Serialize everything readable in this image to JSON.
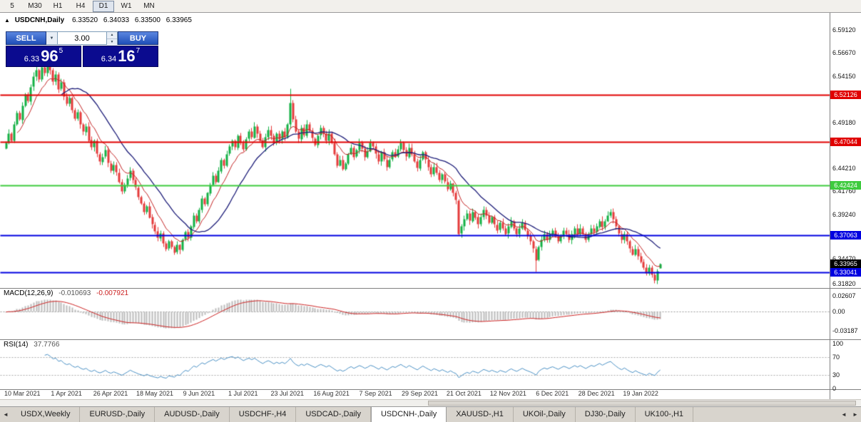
{
  "toolbar": {
    "periods": [
      {
        "label": "5",
        "active": false
      },
      {
        "label": "M30",
        "active": false
      },
      {
        "label": "H1",
        "active": false
      },
      {
        "label": "H4",
        "active": false
      },
      {
        "label": "D1",
        "active": true
      },
      {
        "label": "W1",
        "active": false
      },
      {
        "label": "MN",
        "active": false
      }
    ]
  },
  "chart": {
    "symbol_title": "USDCNH,Daily",
    "collapse_icon": "▲",
    "ohlc": {
      "open": "6.33520",
      "high": "6.34033",
      "low": "6.33500",
      "close": "6.33965"
    },
    "trade_panel": {
      "sell_label": "SELL",
      "buy_label": "BUY",
      "volume": "3.00",
      "sell_price": {
        "small": "6.33",
        "big": "96",
        "sup": "5"
      },
      "buy_price": {
        "small": "6.34",
        "big": "16",
        "sup": "7"
      }
    },
    "price_axis": {
      "ticks": [
        "6.59120",
        "6.56670",
        "6.54150",
        "6.49180",
        "6.46930",
        "6.44210",
        "6.41760",
        "6.39240",
        "6.36990",
        "6.34470",
        "6.31820"
      ],
      "levels": [
        {
          "label": "6.52126",
          "value": 6.52126,
          "color": "#e00000"
        },
        {
          "label": "6.47044",
          "value": 6.47044,
          "color": "#e00000"
        },
        {
          "label": "6.42424",
          "value": 6.42424,
          "color": "#3ecb3e"
        },
        {
          "label": "6.37063",
          "value": 6.37063,
          "color": "#0000e0"
        },
        {
          "label": "6.33041",
          "value": 6.33041,
          "color": "#0000e0"
        }
      ],
      "current": {
        "label": "6.33965",
        "value": 6.33965,
        "color": "#000000"
      }
    },
    "colors": {
      "candle_up": "#14b044",
      "candle_down": "#e43b3b",
      "ma_fast": "#c22222",
      "ma_slow": "#1c1c78",
      "macd_hist": "#bcbcbc",
      "macd_signal": "#cc2222",
      "rsi_line": "#4a90c4"
    }
  },
  "macd": {
    "label": "MACD(12,26,9)",
    "value1": "-0.010693",
    "value2": "-0.007921",
    "axis": [
      {
        "label": "0.02607",
        "value": 0.02607
      },
      {
        "label": "0.00",
        "value": 0
      },
      {
        "label": "-0.03187",
        "value": -0.03187
      }
    ]
  },
  "rsi": {
    "label": "RSI(14)",
    "value": "37.7766",
    "axis": [
      {
        "label": "100",
        "value": 100
      },
      {
        "label": "70",
        "value": 70
      },
      {
        "label": "30",
        "value": 30
      },
      {
        "label": "0",
        "value": 0
      }
    ],
    "dotted_levels": [
      70,
      30
    ]
  },
  "chart_data": {
    "type": "candlestick",
    "symbol": "USDCNH",
    "timeframe": "Daily",
    "title": "USDCNH,Daily",
    "y_axis_ticks": [
      6.5912,
      6.5667,
      6.5415,
      6.4918,
      6.4693,
      6.4421,
      6.4176,
      6.3924,
      6.3699,
      6.3447,
      6.3182
    ],
    "horizontal_levels": [
      {
        "value": 6.52126,
        "color": "#e00000"
      },
      {
        "value": 6.47044,
        "color": "#e00000"
      },
      {
        "value": 6.42424,
        "color": "#3ecb3e"
      },
      {
        "value": 6.37063,
        "color": "#0000e0"
      },
      {
        "value": 6.33041,
        "color": "#0000e0"
      }
    ],
    "last_ohlc": {
      "open": 6.3352,
      "high": 6.34033,
      "low": 6.335,
      "close": 6.33965
    },
    "x_tick_labels": [
      "10 Mar 2021",
      "1 Apr 2021",
      "26 Apr 2021",
      "18 May 2021",
      "9 Jun 2021",
      "1 Jul 2021",
      "23 Jul 2021",
      "16 Aug 2021",
      "7 Sep 2021",
      "29 Sep 2021",
      "21 Oct 2021",
      "12 Nov 2021",
      "6 Dec 2021",
      "28 Dec 2021",
      "19 Jan 2022"
    ],
    "x_tick_indices": [
      6,
      22,
      38,
      54,
      70,
      86,
      102,
      118,
      134,
      150,
      166,
      182,
      198,
      214,
      230
    ],
    "closes": [
      6.47,
      6.48,
      6.472,
      6.49,
      6.502,
      6.495,
      6.51,
      6.522,
      6.515,
      6.53,
      6.541,
      6.548,
      6.538,
      6.551,
      6.545,
      6.556,
      6.548,
      6.536,
      6.544,
      6.528,
      6.535,
      6.52,
      6.512,
      6.518,
      6.505,
      6.496,
      6.503,
      6.49,
      6.482,
      6.488,
      6.473,
      6.465,
      6.472,
      6.458,
      6.45,
      6.455,
      6.462,
      6.448,
      6.44,
      6.446,
      6.438,
      6.428,
      6.418,
      6.425,
      6.432,
      6.44,
      6.43,
      6.422,
      6.412,
      6.405,
      6.396,
      6.402,
      6.39,
      6.382,
      6.375,
      6.368,
      6.373,
      6.362,
      6.356,
      6.364,
      6.358,
      6.352,
      6.36,
      6.355,
      6.366,
      6.374,
      6.368,
      6.38,
      6.392,
      6.386,
      6.398,
      6.41,
      6.404,
      6.416,
      6.425,
      6.435,
      6.428,
      6.44,
      6.452,
      6.446,
      6.458,
      6.466,
      6.472,
      6.465,
      6.478,
      6.47,
      6.463,
      6.474,
      6.482,
      6.476,
      6.488,
      6.48,
      6.472,
      6.465,
      6.476,
      6.484,
      6.478,
      6.47,
      6.48,
      6.474,
      6.482,
      6.476,
      6.49,
      6.513,
      6.495,
      6.482,
      6.474,
      6.486,
      6.478,
      6.49,
      6.483,
      6.475,
      6.468,
      6.478,
      6.486,
      6.48,
      6.472,
      6.48,
      6.47,
      6.458,
      6.446,
      6.452,
      6.442,
      6.448,
      6.458,
      6.465,
      6.455,
      6.462,
      6.47,
      6.464,
      6.455,
      6.461,
      6.47,
      6.466,
      6.458,
      6.45,
      6.46,
      6.452,
      6.444,
      6.452,
      6.46,
      6.455,
      6.463,
      6.47,
      6.462,
      6.455,
      6.465,
      6.458,
      6.45,
      6.443,
      6.452,
      6.46,
      6.452,
      6.444,
      6.436,
      6.444,
      6.438,
      6.43,
      6.436,
      6.428,
      6.42,
      6.426,
      6.416,
      6.408,
      6.372,
      6.38,
      6.388,
      6.394,
      6.386,
      6.396,
      6.39,
      6.382,
      6.39,
      6.398,
      6.392,
      6.384,
      6.39,
      6.382,
      6.376,
      6.384,
      6.378,
      6.372,
      6.38,
      6.386,
      6.378,
      6.372,
      6.378,
      6.384,
      6.376,
      6.37,
      6.364,
      6.356,
      6.344,
      6.358,
      6.366,
      6.372,
      6.366,
      6.372,
      6.376,
      6.37,
      6.364,
      6.37,
      6.376,
      6.372,
      6.366,
      6.372,
      6.378,
      6.372,
      6.378,
      6.372,
      6.366,
      6.372,
      6.378,
      6.374,
      6.38,
      6.386,
      6.38,
      6.386,
      6.392,
      6.396,
      6.388,
      6.38,
      6.372,
      6.366,
      6.372,
      6.364,
      6.356,
      6.35,
      6.356,
      6.348,
      6.342,
      6.336,
      6.33,
      6.336,
      6.328,
      6.322,
      6.332,
      6.3397
    ],
    "indicators": [
      {
        "name": "MACD",
        "params": [
          12,
          26,
          9
        ],
        "current_values": [
          -0.010693,
          -0.007921
        ],
        "axis_range": [
          -0.03187,
          0.02607
        ]
      },
      {
        "name": "RSI",
        "params": [
          14
        ],
        "current_value": 37.7766,
        "levels": [
          70,
          30
        ],
        "axis_range": [
          0,
          100
        ]
      }
    ]
  },
  "bottom_tabs": {
    "scroll_left": "◄",
    "scroll_right_a": "◄",
    "scroll_right_b": "►",
    "active_index": 5,
    "tabs": [
      {
        "label": "USDX,Weekly"
      },
      {
        "label": "EURUSD-,Daily"
      },
      {
        "label": "AUDUSD-,Daily"
      },
      {
        "label": "USDCHF-,H4"
      },
      {
        "label": "USDCAD-,Daily"
      },
      {
        "label": "USDCNH-,Daily"
      },
      {
        "label": "XAUUSD-,H1"
      },
      {
        "label": "UKOil-,Daily"
      },
      {
        "label": "DJ30-,Daily"
      },
      {
        "label": "UK100-,H1"
      }
    ]
  }
}
